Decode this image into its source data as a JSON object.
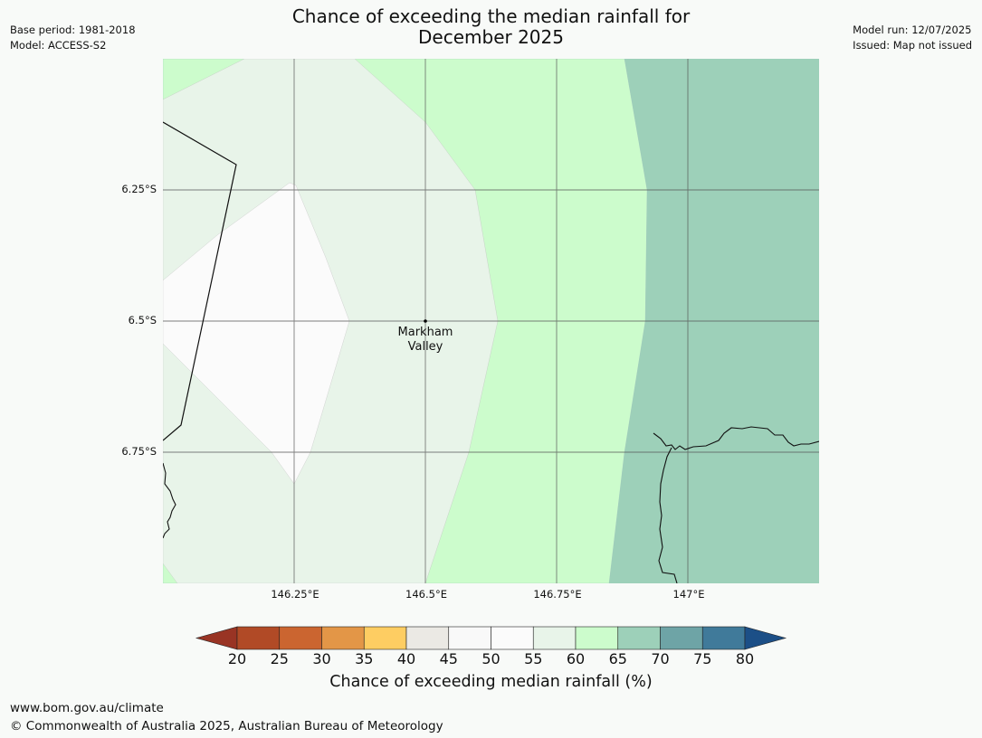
{
  "header": {
    "title_line1": "Chance of exceeding the median rainfall for",
    "title_line2": "December 2025",
    "base_period": "Base period: 1981-2018",
    "model": "Model: ACCESS-S2",
    "model_run": "Model run: 12/07/2025",
    "issued": "Issued: Map not issued"
  },
  "map": {
    "lat_labels": [
      "6.25°S",
      "6.5°S",
      "6.75°S"
    ],
    "lon_labels": [
      "146.25°E",
      "146.5°E",
      "146.75°E",
      "147°E"
    ],
    "place": {
      "name_line1": "Markham",
      "name_line2": "Valley"
    },
    "category_colors": {
      "40-45": "#ebe9e4",
      "45-50": "#f9f9f9",
      "50-55": "#fbfbfb",
      "55-60": "#e8f4e9",
      "60-65": "#ccfccc",
      "65-70": "#9dd0b9"
    }
  },
  "colorbar": {
    "label": "Chance of exceeding median rainfall (%)",
    "ticks": [
      "20",
      "25",
      "30",
      "35",
      "40",
      "45",
      "50",
      "55",
      "60",
      "65",
      "70",
      "75",
      "80"
    ],
    "colors": [
      "#993424",
      "#b14a26",
      "#cb6530",
      "#e39647",
      "#fecd62",
      "#ebe9e4",
      "#f9f9f9",
      "#fbfbfb",
      "#e8f4e9",
      "#ccfccc",
      "#9dd0b9",
      "#6ea4a6",
      "#407a9a",
      "#1c4f87"
    ]
  },
  "footer": {
    "url": "www.bom.gov.au/climate",
    "copyright": "© Commonwealth of Australia 2025, Australian Bureau of Meteorology"
  }
}
